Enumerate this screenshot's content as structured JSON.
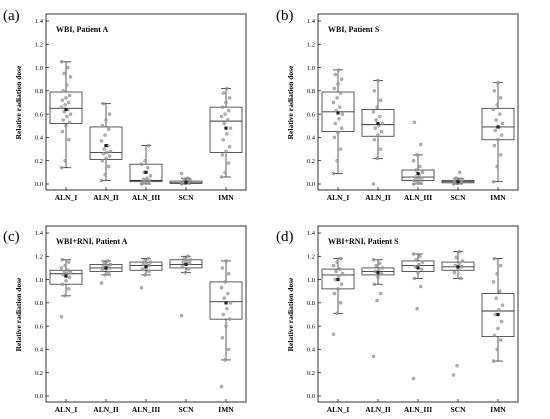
{
  "chart_data": [
    {
      "type": "box",
      "panel_label": "(a)",
      "title": "WBI, Patient A",
      "ylabel": "Relative radiation dose",
      "ylim": [
        0,
        1.4
      ],
      "yticks": [
        0.0,
        0.2,
        0.4,
        0.6,
        0.8,
        1.0,
        1.2,
        1.4
      ],
      "grid": false,
      "categories": [
        "ALN_I",
        "ALN_II",
        "ALN_III",
        "SCN",
        "IMN"
      ],
      "boxes": [
        {
          "category": "ALN_I",
          "min": 0.14,
          "q1": 0.52,
          "median": 0.65,
          "q3": 0.79,
          "max": 1.05,
          "mean": 0.64,
          "points": [
            0.14,
            0.2,
            0.38,
            0.45,
            0.5,
            0.53,
            0.55,
            0.58,
            0.6,
            0.62,
            0.64,
            0.66,
            0.68,
            0.7,
            0.72,
            0.74,
            0.76,
            0.8,
            0.85,
            0.92,
            0.95,
            1.0,
            1.05
          ]
        },
        {
          "category": "ALN_II",
          "min": 0.03,
          "q1": 0.21,
          "median": 0.27,
          "q3": 0.49,
          "max": 0.69,
          "mean": 0.33,
          "points": [
            0.03,
            0.08,
            0.15,
            0.2,
            0.22,
            0.24,
            0.26,
            0.27,
            0.28,
            0.3,
            0.33,
            0.37,
            0.42,
            0.47,
            0.5,
            0.55,
            0.6,
            0.69
          ]
        },
        {
          "category": "ALN_III",
          "min": 0.0,
          "q1": 0.02,
          "median": 0.03,
          "q3": 0.17,
          "max": 0.33,
          "mean": 0.1,
          "points": [
            0.0,
            0.01,
            0.02,
            0.02,
            0.03,
            0.03,
            0.04,
            0.05,
            0.07,
            0.1,
            0.14,
            0.17,
            0.2,
            0.33
          ]
        },
        {
          "category": "SCN",
          "min": 0.0,
          "q1": 0.005,
          "median": 0.01,
          "q3": 0.025,
          "max": 0.05,
          "mean": 0.015,
          "points": [
            0.0,
            0.005,
            0.01,
            0.01,
            0.015,
            0.02,
            0.02,
            0.025,
            0.03,
            0.04,
            0.05,
            0.09
          ]
        },
        {
          "category": "IMN",
          "min": 0.06,
          "q1": 0.27,
          "median": 0.54,
          "q3": 0.66,
          "max": 0.82,
          "mean": 0.48,
          "points": [
            0.06,
            0.1,
            0.18,
            0.25,
            0.28,
            0.32,
            0.38,
            0.43,
            0.48,
            0.52,
            0.55,
            0.58,
            0.6,
            0.63,
            0.66,
            0.7,
            0.74,
            0.78,
            0.82
          ]
        }
      ]
    },
    {
      "type": "box",
      "panel_label": "(b)",
      "title": "WBI, Patient S",
      "ylabel": "Relative radiation dose",
      "ylim": [
        0,
        1.4
      ],
      "yticks": [
        0.0,
        0.2,
        0.4,
        0.6,
        0.8,
        1.0,
        1.2,
        1.4
      ],
      "grid": false,
      "categories": [
        "ALN_I",
        "ALN_II",
        "ALN_III",
        "SCN",
        "IMN"
      ],
      "boxes": [
        {
          "category": "ALN_I",
          "min": 0.09,
          "q1": 0.45,
          "median": 0.62,
          "q3": 0.79,
          "max": 0.98,
          "mean": 0.61,
          "points": [
            0.09,
            0.2,
            0.3,
            0.4,
            0.44,
            0.48,
            0.52,
            0.56,
            0.6,
            0.63,
            0.66,
            0.7,
            0.74,
            0.78,
            0.82,
            0.86,
            0.9,
            0.94,
            0.98
          ]
        },
        {
          "category": "ALN_II",
          "min": 0.22,
          "q1": 0.41,
          "median": 0.51,
          "q3": 0.64,
          "max": 0.89,
          "mean": 0.52,
          "points": [
            0.0,
            0.22,
            0.3,
            0.38,
            0.42,
            0.45,
            0.48,
            0.5,
            0.52,
            0.55,
            0.58,
            0.62,
            0.66,
            0.72,
            0.8,
            0.89
          ]
        },
        {
          "category": "ALN_III",
          "min": 0.0,
          "q1": 0.03,
          "median": 0.06,
          "q3": 0.12,
          "max": 0.25,
          "mean": 0.09,
          "points": [
            0.0,
            0.01,
            0.02,
            0.03,
            0.04,
            0.05,
            0.06,
            0.08,
            0.1,
            0.12,
            0.15,
            0.2,
            0.25,
            0.34,
            0.53
          ]
        },
        {
          "category": "SCN",
          "min": 0.0,
          "q1": 0.01,
          "median": 0.02,
          "q3": 0.03,
          "max": 0.05,
          "mean": 0.02,
          "points": [
            0.0,
            0.005,
            0.01,
            0.015,
            0.02,
            0.02,
            0.025,
            0.03,
            0.04,
            0.05,
            0.1
          ]
        },
        {
          "category": "IMN",
          "min": 0.02,
          "q1": 0.38,
          "median": 0.49,
          "q3": 0.65,
          "max": 0.87,
          "mean": 0.49,
          "points": [
            0.02,
            0.15,
            0.25,
            0.33,
            0.38,
            0.42,
            0.46,
            0.49,
            0.52,
            0.55,
            0.6,
            0.64,
            0.68,
            0.74,
            0.8,
            0.87
          ]
        }
      ]
    },
    {
      "type": "box",
      "panel_label": "(c)",
      "title": "WBI+RNI, Patient A",
      "ylabel": "Relative radiation dose",
      "ylim": [
        0,
        1.4
      ],
      "yticks": [
        0.0,
        0.2,
        0.4,
        0.6,
        0.8,
        1.0,
        1.2,
        1.4
      ],
      "grid": false,
      "categories": [
        "ALN_I",
        "ALN_II",
        "ALN_III",
        "SCN",
        "IMN"
      ],
      "boxes": [
        {
          "category": "ALN_I",
          "min": 0.86,
          "q1": 0.96,
          "median": 1.05,
          "q3": 1.08,
          "max": 1.17,
          "mean": 1.03,
          "points": [
            0.68,
            0.86,
            0.92,
            0.96,
            0.99,
            1.02,
            1.04,
            1.05,
            1.06,
            1.07,
            1.08,
            1.1,
            1.12,
            1.15,
            1.17
          ]
        },
        {
          "category": "ALN_II",
          "min": 1.04,
          "q1": 1.07,
          "median": 1.1,
          "q3": 1.13,
          "max": 1.16,
          "mean": 1.1,
          "points": [
            0.97,
            1.04,
            1.06,
            1.08,
            1.09,
            1.1,
            1.11,
            1.12,
            1.13,
            1.14,
            1.16
          ]
        },
        {
          "category": "ALN_III",
          "min": 1.04,
          "q1": 1.08,
          "median": 1.12,
          "q3": 1.15,
          "max": 1.18,
          "mean": 1.11,
          "points": [
            0.93,
            1.04,
            1.07,
            1.09,
            1.1,
            1.12,
            1.13,
            1.14,
            1.15,
            1.16,
            1.18
          ]
        },
        {
          "category": "SCN",
          "min": 1.06,
          "q1": 1.1,
          "median": 1.13,
          "q3": 1.17,
          "max": 1.2,
          "mean": 1.13,
          "points": [
            0.69,
            1.06,
            1.09,
            1.11,
            1.13,
            1.14,
            1.15,
            1.16,
            1.17,
            1.18,
            1.2
          ]
        },
        {
          "category": "IMN",
          "min": 0.31,
          "q1": 0.66,
          "median": 0.81,
          "q3": 0.98,
          "max": 1.16,
          "mean": 0.8,
          "points": [
            0.08,
            0.31,
            0.4,
            0.5,
            0.6,
            0.66,
            0.7,
            0.75,
            0.8,
            0.84,
            0.88,
            0.93,
            0.98,
            1.05,
            1.1,
            1.16
          ]
        }
      ]
    },
    {
      "type": "box",
      "panel_label": "(d)",
      "title": "WBI+RNI, Patient S",
      "ylabel": "Relative radiation dose",
      "ylim": [
        0,
        1.4
      ],
      "yticks": [
        0.0,
        0.2,
        0.4,
        0.6,
        0.8,
        1.0,
        1.2,
        1.4
      ],
      "grid": false,
      "categories": [
        "ALN_I",
        "ALN_II",
        "ALN_III",
        "SCN",
        "IMN"
      ],
      "boxes": [
        {
          "category": "ALN_I",
          "min": 0.71,
          "q1": 0.92,
          "median": 1.04,
          "q3": 1.09,
          "max": 1.18,
          "mean": 1.0,
          "points": [
            0.53,
            0.71,
            0.8,
            0.88,
            0.92,
            0.96,
            1.0,
            1.03,
            1.05,
            1.07,
            1.09,
            1.12,
            1.15,
            1.18
          ]
        },
        {
          "category": "ALN_II",
          "min": 0.96,
          "q1": 1.04,
          "median": 1.07,
          "q3": 1.1,
          "max": 1.17,
          "mean": 1.06,
          "points": [
            0.34,
            0.82,
            0.88,
            0.96,
            1.02,
            1.05,
            1.07,
            1.08,
            1.1,
            1.12,
            1.14,
            1.17
          ]
        },
        {
          "category": "ALN_III",
          "min": 1.01,
          "q1": 1.07,
          "median": 1.12,
          "q3": 1.16,
          "max": 1.22,
          "mean": 1.1,
          "points": [
            0.15,
            0.75,
            0.94,
            1.01,
            1.06,
            1.09,
            1.11,
            1.13,
            1.15,
            1.17,
            1.2,
            1.22
          ]
        },
        {
          "category": "SCN",
          "min": 1.01,
          "q1": 1.08,
          "median": 1.11,
          "q3": 1.15,
          "max": 1.24,
          "mean": 1.11,
          "points": [
            0.18,
            0.26,
            1.01,
            1.06,
            1.09,
            1.11,
            1.12,
            1.14,
            1.16,
            1.19,
            1.24
          ]
        },
        {
          "category": "IMN",
          "min": 0.3,
          "q1": 0.51,
          "median": 0.73,
          "q3": 0.88,
          "max": 1.18,
          "mean": 0.7,
          "points": [
            0.3,
            0.4,
            0.48,
            0.52,
            0.58,
            0.64,
            0.7,
            0.74,
            0.78,
            0.84,
            0.9,
            0.98,
            1.05,
            1.12,
            1.18
          ]
        }
      ]
    }
  ]
}
